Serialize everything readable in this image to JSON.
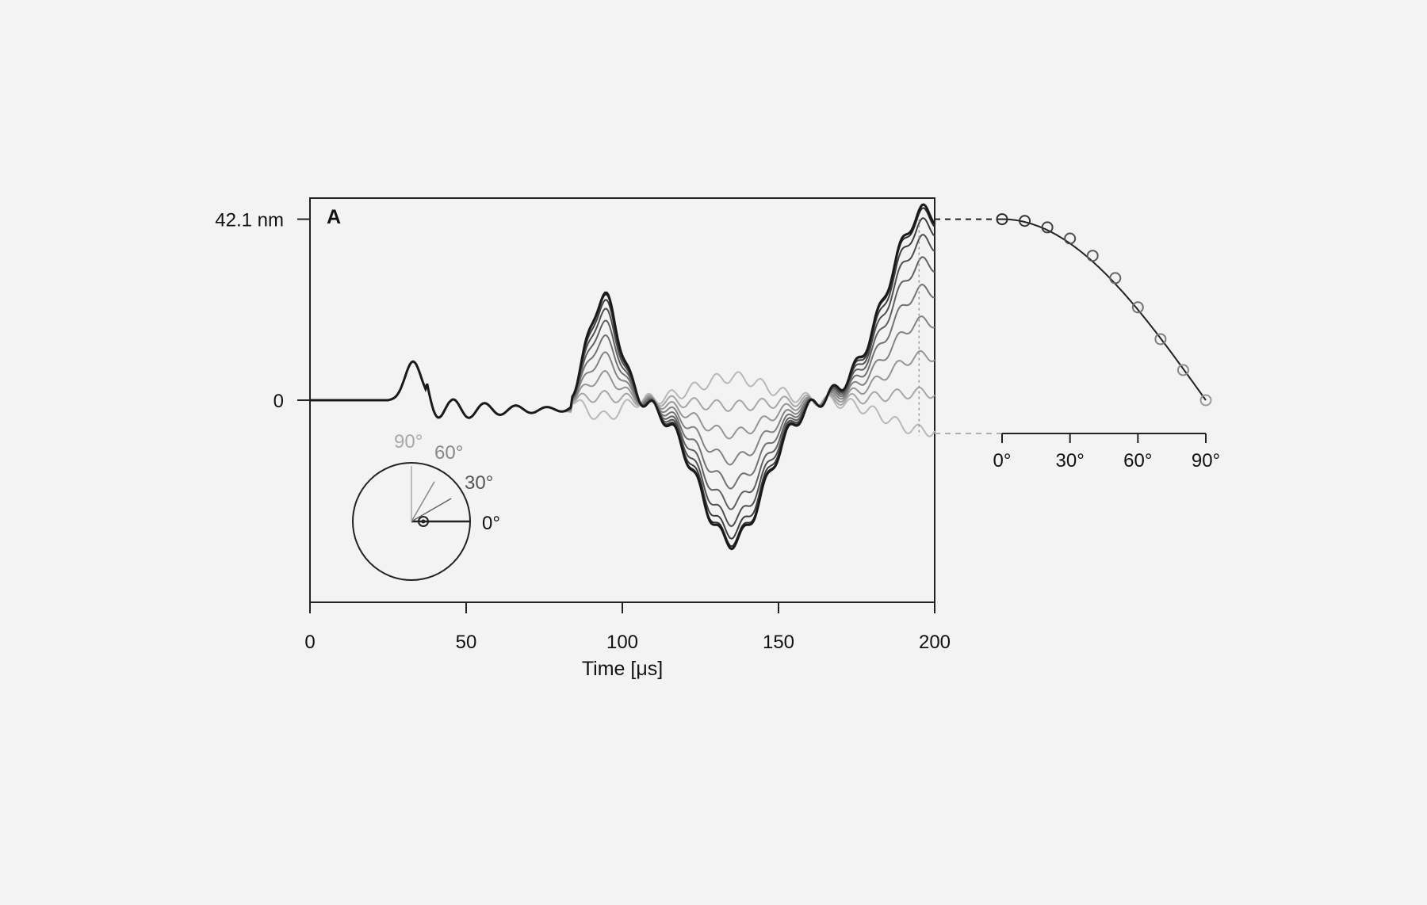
{
  "chart_data": {
    "type": "line",
    "panel_label": "A",
    "main": {
      "xlabel": "Time [μs]",
      "xlim": [
        0,
        200
      ],
      "x_ticks": [
        0,
        50,
        100,
        150,
        200
      ],
      "y_tick_labels": [
        "42.1 nm",
        "0"
      ],
      "y_tick_values": [
        42.1,
        0
      ],
      "ylim": [
        -47,
        47
      ],
      "grid": false,
      "series_count": 10,
      "angles_deg": [
        0,
        10,
        20,
        30,
        40,
        50,
        60,
        70,
        80,
        90
      ],
      "peak_time_us": 195,
      "colors": {
        "darkest": "#1a1a1a",
        "lightest": "#b8b8b8"
      }
    },
    "inset_polar": {
      "labels": [
        "90°",
        "60°",
        "30°",
        "0°"
      ],
      "label_angles_deg": [
        90,
        60,
        30,
        0
      ]
    },
    "amplitude_vs_angle": {
      "type": "scatter",
      "x_tick_labels": [
        "0°",
        "30°",
        "60°",
        "90°"
      ],
      "x_tick_values": [
        0,
        30,
        60,
        90
      ],
      "points": [
        {
          "angle": 0,
          "value": 42.1
        },
        {
          "angle": 10,
          "value": 41.7
        },
        {
          "angle": 20,
          "value": 40.2
        },
        {
          "angle": 30,
          "value": 37.6
        },
        {
          "angle": 40,
          "value": 33.6
        },
        {
          "angle": 50,
          "value": 28.4
        },
        {
          "angle": 60,
          "value": 21.6
        },
        {
          "angle": 70,
          "value": 14.2
        },
        {
          "angle": 80,
          "value": 7.0
        },
        {
          "angle": 90,
          "value": 0.0
        }
      ],
      "fit": "cosine"
    }
  }
}
